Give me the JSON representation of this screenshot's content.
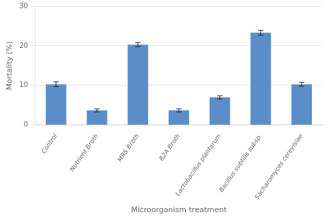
{
  "chart_data": {
    "type": "bar",
    "categories": [
      "Control",
      "Nutrient Broth",
      "MRS Broth",
      "R2A Broth",
      "Lactobacillus plantarum",
      "Bacillus subtilis subsp.",
      "Sacharomyces cerevisiae"
    ],
    "values": [
      10.3,
      3.7,
      20.3,
      3.7,
      7.0,
      23.3,
      10.3
    ],
    "errors": [
      0.6,
      0.4,
      0.5,
      0.4,
      0.4,
      0.6,
      0.5
    ],
    "color": "#5B8DC8",
    "xlabel": "Microorganism treatment",
    "ylabel": "Mortality (%)",
    "ylim": [
      0,
      30
    ],
    "yticks": [
      0,
      10,
      20,
      30
    ],
    "grid": true
  }
}
